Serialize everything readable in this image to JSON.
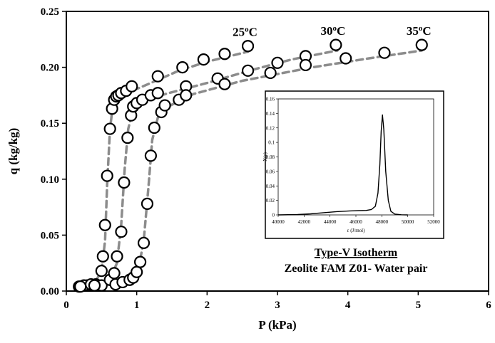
{
  "chart_data": [
    {
      "type": "scatter",
      "title": "",
      "xlabel": "P (kPa)",
      "ylabel": "q (kg/kg)",
      "xlim": [
        0,
        6
      ],
      "ylim": [
        0,
        0.25
      ],
      "xticks": [
        "0",
        "1",
        "2",
        "3",
        "4",
        "5",
        "6"
      ],
      "yticks": [
        "0.00",
        "0.05",
        "0.10",
        "0.15",
        "0.20",
        "0.25"
      ],
      "grid": false,
      "fit_line_color": "#8c8c8c",
      "marker": "open-circle",
      "series": [
        {
          "name": "25oC",
          "label_base": "25",
          "label_sup": "o",
          "label_unit": "C",
          "points": [
            [
              0.18,
              0.004
            ],
            [
              0.3,
              0.005
            ],
            [
              0.42,
              0.006
            ],
            [
              0.5,
              0.018
            ],
            [
              0.52,
              0.031
            ],
            [
              0.55,
              0.059
            ],
            [
              0.58,
              0.103
            ],
            [
              0.62,
              0.145
            ],
            [
              0.65,
              0.163
            ],
            [
              0.68,
              0.171
            ],
            [
              0.71,
              0.174
            ],
            [
              0.74,
              0.175
            ],
            [
              0.78,
              0.177
            ],
            [
              0.85,
              0.179
            ],
            [
              0.93,
              0.183
            ],
            [
              1.3,
              0.192
            ],
            [
              1.65,
              0.2
            ],
            [
              1.95,
              0.207
            ],
            [
              2.25,
              0.212
            ],
            [
              2.58,
              0.219
            ]
          ],
          "fit": [
            [
              0.15,
              0.003
            ],
            [
              0.4,
              0.007
            ],
            [
              0.5,
              0.018
            ],
            [
              0.55,
              0.045
            ],
            [
              0.58,
              0.095
            ],
            [
              0.62,
              0.145
            ],
            [
              0.66,
              0.165
            ],
            [
              0.75,
              0.174
            ],
            [
              0.9,
              0.178
            ],
            [
              1.2,
              0.186
            ],
            [
              1.6,
              0.197
            ],
            [
              2.0,
              0.205
            ],
            [
              2.58,
              0.214
            ]
          ]
        },
        {
          "name": "30oC",
          "label_base": "30",
          "label_sup": "o",
          "label_unit": "C",
          "points": [
            [
              0.25,
              0.005
            ],
            [
              0.35,
              0.006
            ],
            [
              0.5,
              0.005
            ],
            [
              0.62,
              0.01
            ],
            [
              0.68,
              0.016
            ],
            [
              0.72,
              0.031
            ],
            [
              0.78,
              0.053
            ],
            [
              0.82,
              0.097
            ],
            [
              0.87,
              0.137
            ],
            [
              0.92,
              0.157
            ],
            [
              0.95,
              0.165
            ],
            [
              1.0,
              0.168
            ],
            [
              1.08,
              0.171
            ],
            [
              1.2,
              0.175
            ],
            [
              1.3,
              0.177
            ],
            [
              1.7,
              0.183
            ],
            [
              2.15,
              0.19
            ],
            [
              2.58,
              0.197
            ],
            [
              3.0,
              0.204
            ],
            [
              3.4,
              0.21
            ],
            [
              3.83,
              0.22
            ]
          ],
          "fit": [
            [
              0.2,
              0.003
            ],
            [
              0.6,
              0.008
            ],
            [
              0.72,
              0.025
            ],
            [
              0.78,
              0.06
            ],
            [
              0.83,
              0.11
            ],
            [
              0.88,
              0.145
            ],
            [
              0.95,
              0.163
            ],
            [
              1.1,
              0.17
            ],
            [
              1.4,
              0.176
            ],
            [
              2.0,
              0.186
            ],
            [
              2.6,
              0.197
            ],
            [
              3.2,
              0.207
            ],
            [
              3.85,
              0.215
            ]
          ]
        },
        {
          "name": "35oC",
          "label_base": "35",
          "label_sup": "o",
          "label_unit": "C",
          "points": [
            [
              0.2,
              0.004
            ],
            [
              0.4,
              0.005
            ],
            [
              0.7,
              0.006
            ],
            [
              0.8,
              0.008
            ],
            [
              0.9,
              0.01
            ],
            [
              0.95,
              0.012
            ],
            [
              1.0,
              0.017
            ],
            [
              1.05,
              0.026
            ],
            [
              1.1,
              0.043
            ],
            [
              1.15,
              0.078
            ],
            [
              1.2,
              0.121
            ],
            [
              1.25,
              0.146
            ],
            [
              1.35,
              0.16
            ],
            [
              1.4,
              0.166
            ],
            [
              1.6,
              0.171
            ],
            [
              1.7,
              0.175
            ],
            [
              2.25,
              0.185
            ],
            [
              2.9,
              0.195
            ],
            [
              3.4,
              0.202
            ],
            [
              3.97,
              0.208
            ],
            [
              4.52,
              0.213
            ],
            [
              5.05,
              0.22
            ]
          ],
          "fit": [
            [
              0.2,
              0.004
            ],
            [
              0.9,
              0.009
            ],
            [
              1.02,
              0.018
            ],
            [
              1.1,
              0.045
            ],
            [
              1.17,
              0.095
            ],
            [
              1.22,
              0.135
            ],
            [
              1.3,
              0.155
            ],
            [
              1.45,
              0.165
            ],
            [
              1.8,
              0.176
            ],
            [
              2.5,
              0.188
            ],
            [
              3.5,
              0.2
            ],
            [
              4.3,
              0.208
            ],
            [
              5.05,
              0.215
            ]
          ]
        }
      ]
    },
    {
      "type": "line",
      "title": "",
      "xlabel": "ε (J/mol)",
      "ylabel": "X(ε)",
      "xlim": [
        40000,
        52000
      ],
      "ylim": [
        0,
        0.16
      ],
      "xticks": [
        "40000",
        "42000",
        "44000",
        "46000",
        "48000",
        "50000",
        "52000"
      ],
      "yticks": [
        "0",
        "0.02",
        "0.04",
        "0.06",
        "0.08",
        "0.1",
        "0.12",
        "0.14",
        "0.16"
      ],
      "series": [
        {
          "points": [
            [
              40000,
              0.0
            ],
            [
              41500,
              0.0005
            ],
            [
              42500,
              0.0015
            ],
            [
              43500,
              0.003
            ],
            [
              44500,
              0.0045
            ],
            [
              45500,
              0.0055
            ],
            [
              46200,
              0.006
            ],
            [
              46800,
              0.0062
            ],
            [
              47200,
              0.0075
            ],
            [
              47500,
              0.012
            ],
            [
              47700,
              0.03
            ],
            [
              47850,
              0.07
            ],
            [
              47950,
              0.115
            ],
            [
              48050,
              0.138
            ],
            [
              48150,
              0.118
            ],
            [
              48300,
              0.06
            ],
            [
              48500,
              0.02
            ],
            [
              48700,
              0.005
            ],
            [
              49000,
              0.0012
            ],
            [
              49500,
              0.0002
            ],
            [
              50000,
              0.0
            ]
          ]
        }
      ]
    }
  ],
  "caption": {
    "line1": "Type-V Isotherm",
    "line2": "Zeolite FAM Z01- Water pair"
  }
}
